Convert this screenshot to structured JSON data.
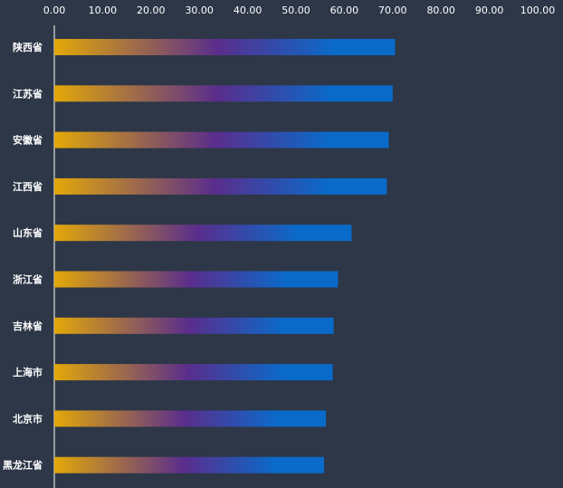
{
  "chart_data": {
    "type": "bar",
    "orientation": "horizontal",
    "categories": [
      "陕西省",
      "江苏省",
      "安徽省",
      "江西省",
      "山东省",
      "浙江省",
      "吉林省",
      "上海市",
      "北京市",
      "黑龙江省"
    ],
    "values": [
      70.5,
      70.0,
      69.2,
      68.8,
      61.5,
      58.7,
      57.8,
      57.6,
      56.2,
      55.8
    ],
    "x_ticks": [
      "0.00",
      "10.00",
      "20.00",
      "30.00",
      "40.00",
      "50.00",
      "60.00",
      "70.00",
      "80.00",
      "90.00",
      "100.00"
    ],
    "xlim": [
      0,
      100
    ],
    "x_axis_position": "top",
    "grid": false,
    "legend": "none",
    "title": "",
    "xlabel": "",
    "ylabel": "",
    "colors": {
      "background": "#2d3747",
      "gradient_start": "#e3a808",
      "gradient_mid": "#5a2d8c",
      "gradient_end": "#0a6ac9",
      "axis_line": "#ffffff",
      "text": "#ffffff"
    }
  }
}
